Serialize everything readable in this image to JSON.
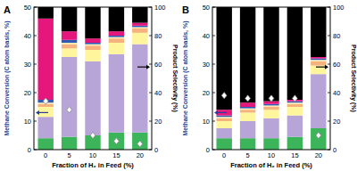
{
  "chart_data": [
    {
      "type": "bar",
      "title": "A",
      "x_label": "Fraction of H₂ in Feed (%)",
      "y_label": "Methane Conversion (C atom basis, %)",
      "y2_label": "Product Selectivity (%)",
      "categories": [
        0,
        5,
        10,
        15,
        20
      ],
      "stacked": true,
      "ylim": [
        0,
        50
      ],
      "yticks": [
        0,
        10,
        20,
        30,
        40,
        50
      ],
      "y2lim": [
        0,
        100
      ],
      "y2ticks": [
        0,
        20,
        40,
        60,
        80,
        100
      ],
      "series": [
        {
          "type": "bar",
          "axis": "y2",
          "color": "#3cb55a",
          "values": [
            8,
            9,
            10,
            12,
            12
          ]
        },
        {
          "type": "bar",
          "axis": "y2",
          "color": "#b7a5d8",
          "values": [
            15,
            56,
            52,
            55,
            62
          ]
        },
        {
          "type": "bar",
          "axis": "y2",
          "color": "#fff59c",
          "values": [
            7,
            6,
            8,
            8,
            8
          ]
        },
        {
          "type": "bar",
          "axis": "y2",
          "color": "#f6b27c",
          "values": [
            2,
            3,
            3,
            3,
            3
          ]
        },
        {
          "type": "bar",
          "axis": "y2",
          "color": "#fde9b0",
          "values": [
            1,
            1,
            1,
            1,
            1
          ]
        },
        {
          "type": "bar",
          "axis": "y2",
          "color": "#2f5bb7",
          "values": [
            2,
            2,
            1,
            1,
            1
          ]
        },
        {
          "type": "bar",
          "axis": "y2",
          "color": "#e6177c",
          "values": [
            57,
            6,
            3,
            3,
            2
          ]
        },
        {
          "type": "bar",
          "axis": "y2",
          "color": "#000000",
          "values": [
            8,
            17,
            22,
            17,
            11
          ]
        },
        {
          "type": "scatter",
          "axis": "y",
          "marker": "diamond",
          "color": "#ffffff",
          "values": [
            17,
            14,
            5,
            3,
            2
          ]
        }
      ]
    },
    {
      "type": "bar",
      "title": "B",
      "x_label": "Fraction of H₂ in Feed (%)",
      "y_label": "Methane Conversion (C atom basis, %)",
      "y2_label": "Product Selectivity (%)",
      "categories": [
        0,
        5,
        10,
        15,
        20
      ],
      "stacked": true,
      "ylim": [
        0,
        50
      ],
      "yticks": [
        0,
        10,
        20,
        30,
        40,
        50
      ],
      "y2lim": [
        0,
        100
      ],
      "y2ticks": [
        0,
        20,
        40,
        60,
        80,
        100
      ],
      "series": [
        {
          "type": "bar",
          "axis": "y2",
          "color": "#3cb55a",
          "values": [
            8,
            8,
            8,
            9,
            15
          ]
        },
        {
          "type": "bar",
          "axis": "y2",
          "color": "#b7a5d8",
          "values": [
            7,
            12,
            14,
            15,
            38
          ]
        },
        {
          "type": "bar",
          "axis": "y2",
          "color": "#fff59c",
          "values": [
            5,
            6,
            6,
            6,
            6
          ]
        },
        {
          "type": "bar",
          "axis": "y2",
          "color": "#f6b27c",
          "values": [
            2,
            2,
            2,
            2,
            3
          ]
        },
        {
          "type": "bar",
          "axis": "y2",
          "color": "#fde9b0",
          "values": [
            1,
            1,
            1,
            1,
            1
          ]
        },
        {
          "type": "bar",
          "axis": "y2",
          "color": "#2f5bb7",
          "values": [
            1,
            1,
            1,
            1,
            1
          ]
        },
        {
          "type": "bar",
          "axis": "y2",
          "color": "#e6177c",
          "values": [
            4,
            3,
            2,
            1,
            1
          ]
        },
        {
          "type": "bar",
          "axis": "y2",
          "color": "#000000",
          "values": [
            72,
            67,
            66,
            65,
            35
          ]
        },
        {
          "type": "scatter",
          "axis": "y",
          "marker": "diamond",
          "color": "#ffffff",
          "values": [
            19,
            18,
            18,
            18,
            5
          ]
        }
      ]
    }
  ]
}
